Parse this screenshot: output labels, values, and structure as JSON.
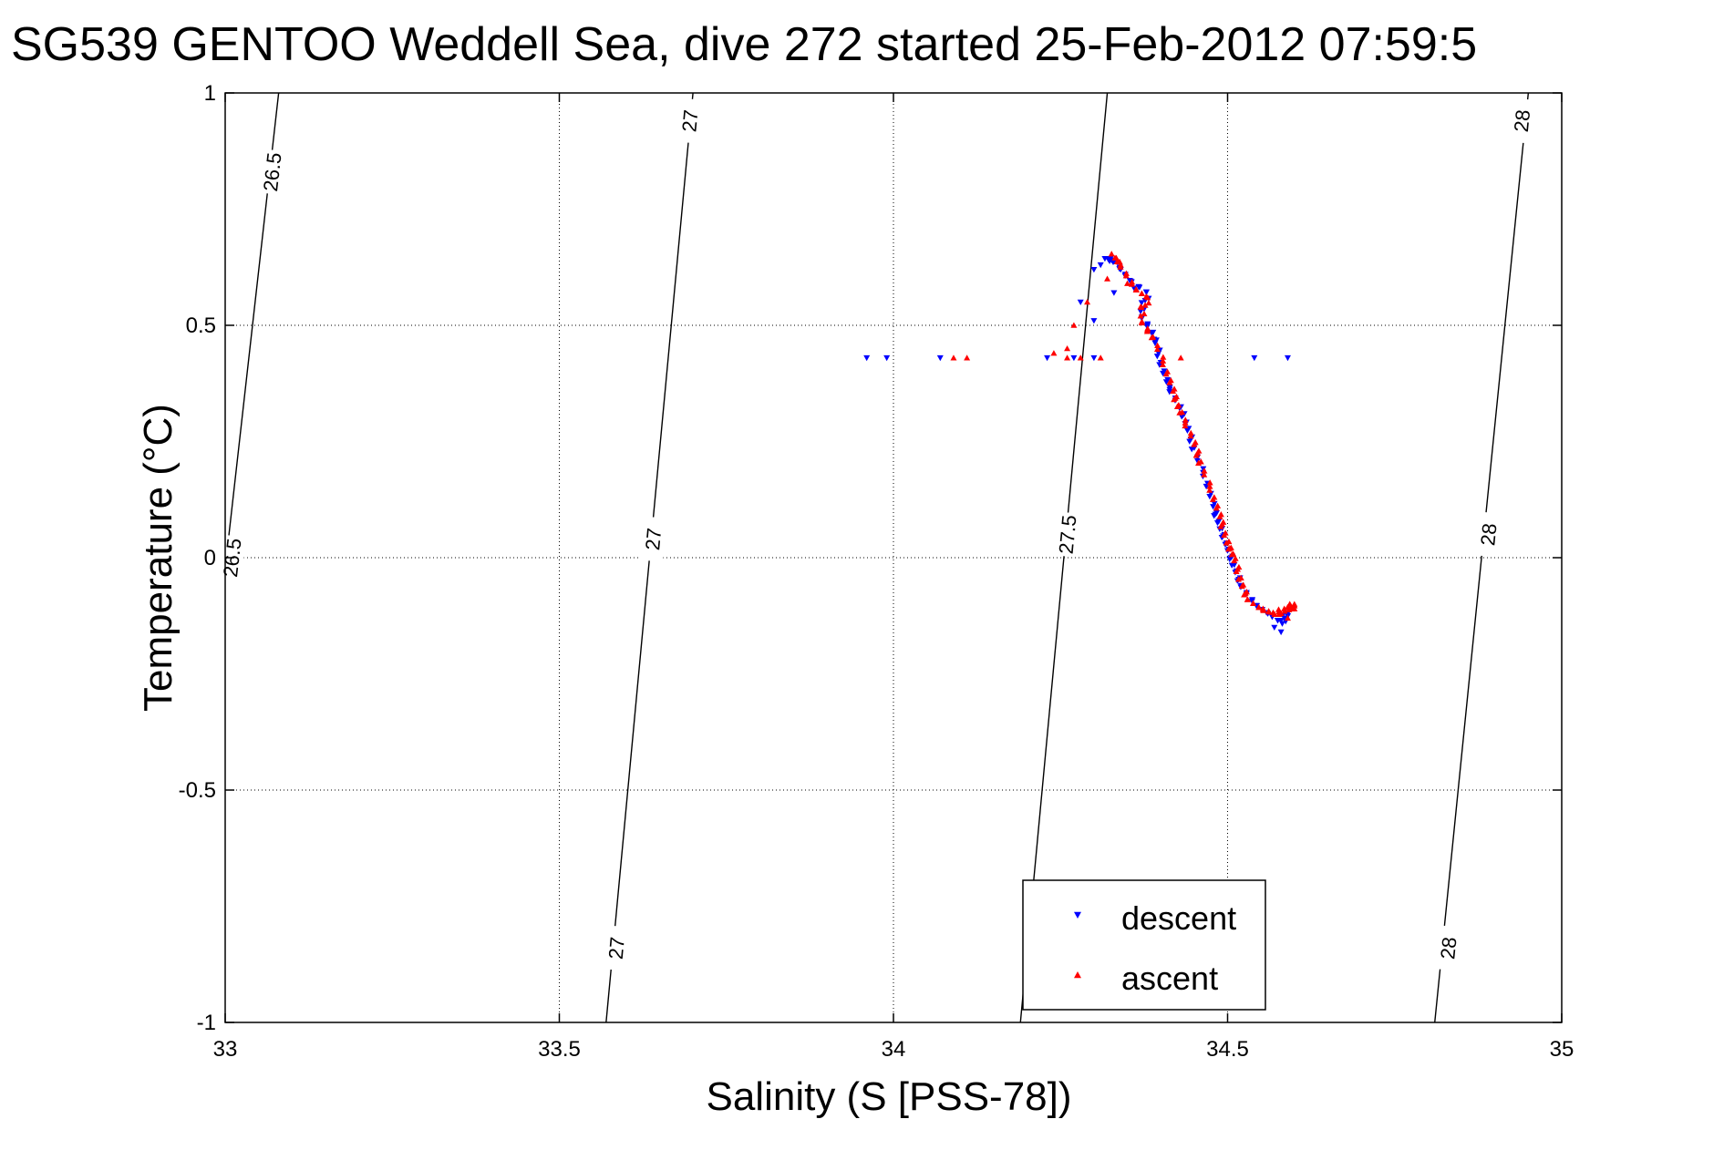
{
  "chart_data": {
    "type": "scatter",
    "title": "SG539 GENTOO Weddell Sea, dive 272 started 25-Feb-2012 07:59:5",
    "xlabel": "Salinity (S [PSS-78])",
    "ylabel": "Temperature (°C)",
    "xlim": [
      33,
      35
    ],
    "ylim": [
      -1,
      1
    ],
    "xticks": [
      33,
      33.5,
      34,
      34.5,
      35
    ],
    "yticks": [
      -1,
      -0.5,
      0,
      0.5,
      1
    ],
    "xtick_labels": [
      "33",
      "33.5",
      "34",
      "34.5",
      "35"
    ],
    "ytick_labels": [
      "-1",
      "-0.5",
      "0",
      "0.5",
      "1"
    ],
    "grid": true,
    "legend": {
      "position": "bottom-right"
    },
    "isopycnals": [
      {
        "label": "26.5",
        "points": [
          [
            33.08,
            1.0
          ],
          [
            32.99,
            -0.15
          ]
        ],
        "label_positions": [
          [
            33.07,
            0.83
          ],
          [
            33.01,
            0.0
          ]
        ]
      },
      {
        "label": "27",
        "points": [
          [
            33.7,
            1.0
          ],
          [
            33.57,
            -1.0
          ]
        ],
        "label_positions": [
          [
            33.695,
            0.94
          ],
          [
            33.64,
            0.04
          ],
          [
            33.585,
            -0.84
          ]
        ]
      },
      {
        "label": "27.5",
        "points": [
          [
            34.32,
            1.0
          ],
          [
            34.19,
            -1.0
          ]
        ],
        "label_positions": [
          [
            34.26,
            0.05
          ]
        ]
      },
      {
        "label": "28",
        "points": [
          [
            34.95,
            1.0
          ],
          [
            34.81,
            -1.0
          ]
        ],
        "label_positions": [
          [
            34.94,
            0.94
          ],
          [
            34.89,
            0.05
          ],
          [
            34.83,
            -0.84
          ]
        ]
      }
    ],
    "series": [
      {
        "name": "descent",
        "color": "#0000ff",
        "marker": "triangle-down",
        "path": [
          [
            34.32,
            0.64
          ],
          [
            34.33,
            0.64
          ],
          [
            34.35,
            0.6
          ],
          [
            34.38,
            0.57
          ],
          [
            34.37,
            0.52
          ],
          [
            34.39,
            0.48
          ],
          [
            34.4,
            0.42
          ],
          [
            34.41,
            0.37
          ],
          [
            34.43,
            0.32
          ],
          [
            34.44,
            0.28
          ],
          [
            34.45,
            0.23
          ],
          [
            34.47,
            0.16
          ],
          [
            34.48,
            0.1
          ],
          [
            34.49,
            0.06
          ],
          [
            34.5,
            0.02
          ],
          [
            34.51,
            -0.02
          ],
          [
            34.52,
            -0.06
          ],
          [
            34.54,
            -0.1
          ],
          [
            34.56,
            -0.12
          ],
          [
            34.58,
            -0.14
          ],
          [
            34.59,
            -0.12
          ]
        ],
        "points": [
          [
            33.96,
            0.43
          ],
          [
            33.99,
            0.43
          ],
          [
            34.07,
            0.43
          ],
          [
            34.23,
            0.43
          ],
          [
            34.27,
            0.43
          ],
          [
            34.3,
            0.43
          ],
          [
            34.54,
            0.43
          ],
          [
            34.59,
            0.43
          ],
          [
            34.28,
            0.55
          ],
          [
            34.3,
            0.62
          ],
          [
            34.31,
            0.63
          ],
          [
            34.34,
            0.62
          ],
          [
            34.36,
            0.58
          ],
          [
            34.38,
            0.5
          ],
          [
            34.39,
            0.47
          ],
          [
            34.58,
            -0.16
          ],
          [
            34.57,
            -0.15
          ],
          [
            34.3,
            0.51
          ],
          [
            34.33,
            0.57
          ]
        ]
      },
      {
        "name": "ascent",
        "color": "#ff0000",
        "marker": "triangle-up",
        "path": [
          [
            34.33,
            0.65
          ],
          [
            34.34,
            0.63
          ],
          [
            34.36,
            0.58
          ],
          [
            34.38,
            0.56
          ],
          [
            34.37,
            0.51
          ],
          [
            34.39,
            0.47
          ],
          [
            34.41,
            0.4
          ],
          [
            34.42,
            0.35
          ],
          [
            34.43,
            0.31
          ],
          [
            34.45,
            0.25
          ],
          [
            34.46,
            0.2
          ],
          [
            34.48,
            0.13
          ],
          [
            34.49,
            0.08
          ],
          [
            34.5,
            0.03
          ],
          [
            34.51,
            0.0
          ],
          [
            34.52,
            -0.05
          ],
          [
            34.53,
            -0.09
          ],
          [
            34.55,
            -0.11
          ],
          [
            34.57,
            -0.12
          ],
          [
            34.59,
            -0.11
          ],
          [
            34.6,
            -0.1
          ]
        ],
        "points": [
          [
            34.09,
            0.43
          ],
          [
            34.11,
            0.43
          ],
          [
            34.24,
            0.44
          ],
          [
            34.26,
            0.45
          ],
          [
            34.28,
            0.43
          ],
          [
            34.31,
            0.43
          ],
          [
            34.43,
            0.43
          ],
          [
            34.27,
            0.5
          ],
          [
            34.29,
            0.55
          ],
          [
            34.32,
            0.6
          ],
          [
            34.35,
            0.59
          ],
          [
            34.37,
            0.54
          ],
          [
            34.6,
            -0.11
          ],
          [
            34.59,
            -0.13
          ],
          [
            34.58,
            -0.12
          ],
          [
            34.26,
            0.43
          ]
        ]
      }
    ]
  }
}
